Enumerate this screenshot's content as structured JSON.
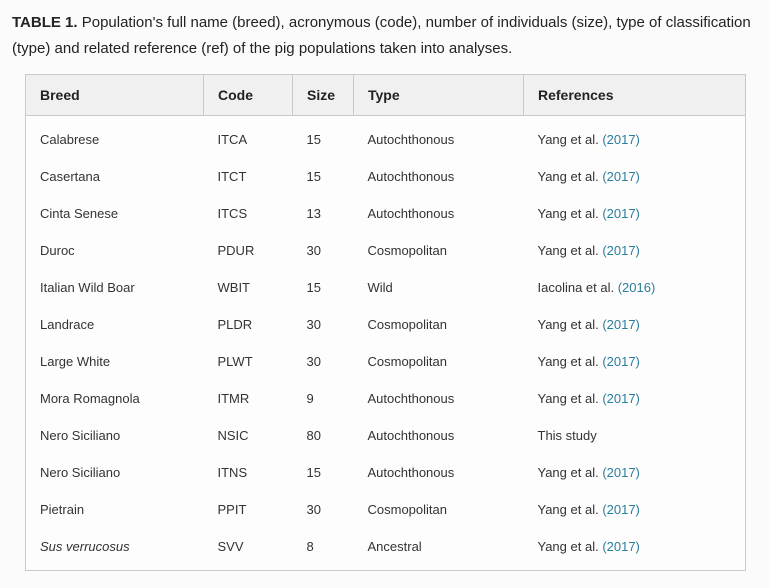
{
  "caption": {
    "label": "TABLE 1.",
    "text": " Population's full name (breed), acronymous (code), number of individuals (size), type of classification (type) and related reference (ref) of the pig populations taken into analyses."
  },
  "table": {
    "headers": [
      "Breed",
      "Code",
      "Size",
      "Type",
      "References"
    ],
    "rows": [
      {
        "breed": "Calabrese",
        "code": "ITCA",
        "size": "15",
        "type": "Autochthonous",
        "ref_text": "Yang et al. ",
        "ref_link": "(2017)"
      },
      {
        "breed": "Casertana",
        "code": "ITCT",
        "size": "15",
        "type": "Autochthonous",
        "ref_text": "Yang et al. ",
        "ref_link": "(2017)"
      },
      {
        "breed": "Cinta Senese",
        "code": "ITCS",
        "size": "13",
        "type": "Autochthonous",
        "ref_text": "Yang et al. ",
        "ref_link": "(2017)"
      },
      {
        "breed": "Duroc",
        "code": "PDUR",
        "size": "30",
        "type": "Cosmopolitan",
        "ref_text": "Yang et al. ",
        "ref_link": "(2017)"
      },
      {
        "breed": "Italian Wild Boar",
        "code": "WBIT",
        "size": "15",
        "type": "Wild",
        "ref_text": "Iacolina et al. ",
        "ref_link": "(2016)"
      },
      {
        "breed": "Landrace",
        "code": "PLDR",
        "size": "30",
        "type": "Cosmopolitan",
        "ref_text": "Yang et al. ",
        "ref_link": "(2017)"
      },
      {
        "breed": "Large White",
        "code": "PLWT",
        "size": "30",
        "type": "Cosmopolitan",
        "ref_text": "Yang et al. ",
        "ref_link": "(2017)"
      },
      {
        "breed": "Mora Romagnola",
        "code": "ITMR",
        "size": "9",
        "type": "Autochthonous",
        "ref_text": "Yang et al. ",
        "ref_link": "(2017)"
      },
      {
        "breed": "Nero Siciliano",
        "code": "NSIC",
        "size": "80",
        "type": "Autochthonous",
        "ref_text": "This study",
        "ref_link": ""
      },
      {
        "breed": "Nero Siciliano",
        "code": "ITNS",
        "size": "15",
        "type": "Autochthonous",
        "ref_text": "Yang et al. ",
        "ref_link": "(2017)"
      },
      {
        "breed": "Pietrain",
        "code": "PPIT",
        "size": "30",
        "type": "Cosmopolitan",
        "ref_text": "Yang et al. ",
        "ref_link": "(2017)"
      },
      {
        "breed": "Sus verrucosus",
        "code": "SVV",
        "size": "8",
        "type": "Ancestral",
        "ref_text": "Yang et al. ",
        "ref_link": "(2017)"
      }
    ]
  },
  "colors": {
    "link": "#2b7d9c",
    "header_bg": "#f0f0f0",
    "border": "#c9c9c9",
    "page_bg": "#fbfbfb"
  }
}
